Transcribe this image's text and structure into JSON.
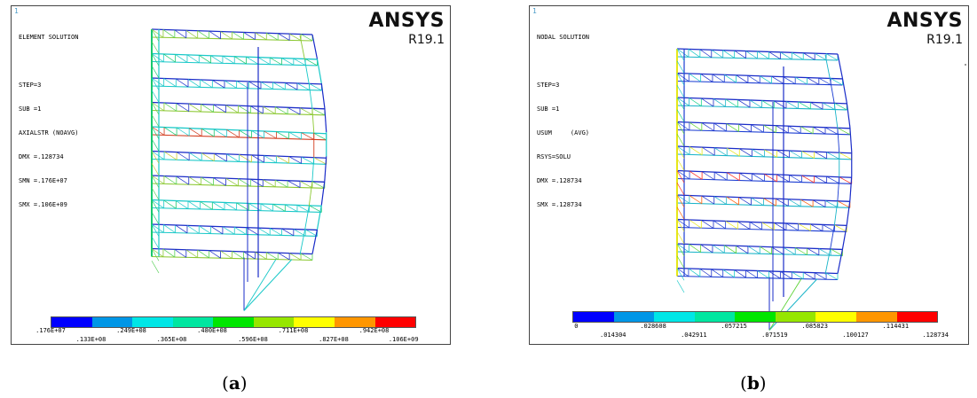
{
  "panels": [
    {
      "index_mark": "1",
      "info": [
        "ELEMENT SOLUTION",
        "",
        "STEP=3",
        "SUB =1",
        "AXIALSTR (NOAVG)",
        "DMX =.128734",
        "SMN =.176E+07",
        "SMX =.106E+09"
      ],
      "brand": "ANSYS",
      "version": "R19.1",
      "legend_labels_top": [
        ".176E+07",
        ".249E+08",
        ".480E+08",
        ".711E+08",
        ".942E+08"
      ],
      "legend_labels_bottom": [
        ".133E+08",
        ".365E+08",
        ".596E+08",
        ".827E+08",
        ".106E+09"
      ],
      "caption": "a"
    },
    {
      "index_mark": "1",
      "info": [
        "NODAL SOLUTION",
        "",
        "STEP=3",
        "SUB =1",
        "USUM     (AVG)",
        "RSYS=SOLU",
        "DMX =.128734",
        "SMX =.128734"
      ],
      "brand": "ANSYS",
      "version": "R19.1",
      "legend_labels_top": [
        "0",
        ".028608",
        ".057215",
        ".085823",
        ".114431"
      ],
      "legend_labels_bottom": [
        ".014304",
        ".042911",
        ".071519",
        ".100127",
        ".128734"
      ],
      "caption": "b"
    }
  ],
  "legend_colors": [
    "#0000ff",
    "#0096e6",
    "#00e6e6",
    "#00e6a0",
    "#00e600",
    "#96e600",
    "#ffff00",
    "#ff9600",
    "#ff0000"
  ]
}
